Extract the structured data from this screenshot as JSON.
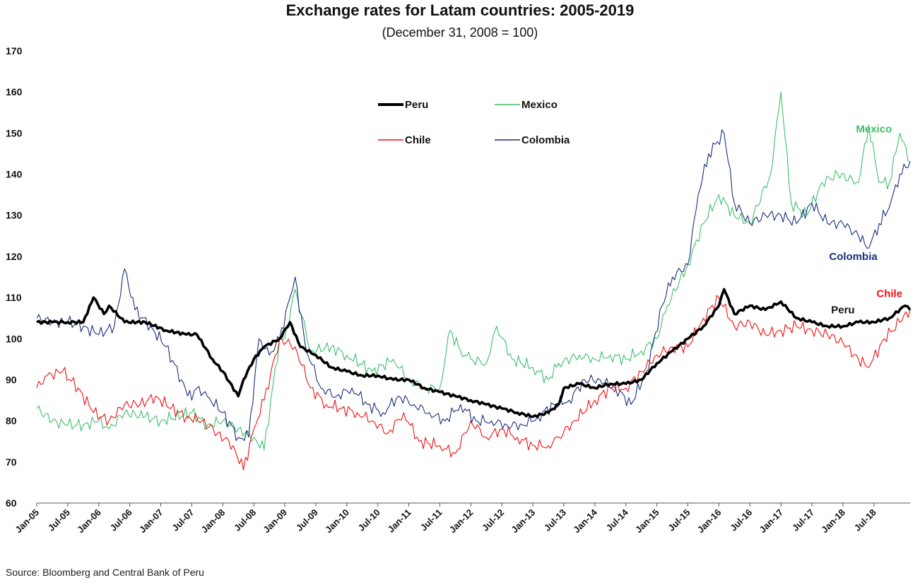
{
  "chart_data": {
    "type": "line",
    "title": "Exchange rates for Latam countries: 2005-2019",
    "subtitle": "(December 31, 2008 = 100)",
    "source": "Source: Bloomberg and Central Bank of Peru",
    "xlabel": "",
    "ylabel": "",
    "ylim": [
      60,
      170
    ],
    "yticks": [
      "60",
      "70",
      "80",
      "90",
      "100",
      "110",
      "120",
      "130",
      "140",
      "150",
      "160",
      "170"
    ],
    "xlim": [
      "Jan-05",
      "Feb-19"
    ],
    "xticks": [
      "Jan-05",
      "Jul-05",
      "Jan-06",
      "Jul-06",
      "Jan-07",
      "Jul-07",
      "Jan-08",
      "Jul-08",
      "Jan-09",
      "Jul-09",
      "Jan-10",
      "Jul-10",
      "Jan-11",
      "Jul-11",
      "Jan-12",
      "Jul-12",
      "Jan-13",
      "Jul-13",
      "Jan-14",
      "Jul-14",
      "Jan-15",
      "Jul-15",
      "Jan-16",
      "Jul-16",
      "Jan-17",
      "Jul-17",
      "Jan-18",
      "Jul-18"
    ],
    "grid": false,
    "legend_position": "top-center",
    "series": [
      {
        "name": "Peru",
        "color": "#000000",
        "x": [
          "Jan-05",
          "Apr-05",
          "Jul-05",
          "Oct-05",
          "Dec-05",
          "Feb-06",
          "Mar-06",
          "Jun-06",
          "Oct-06",
          "Feb-07",
          "Jun-07",
          "Aug-07",
          "Nov-07",
          "Jan-08",
          "Apr-08",
          "May-08",
          "Jul-08",
          "Sep-08",
          "Dec-08",
          "Feb-09",
          "Apr-09",
          "Jul-09",
          "Oct-09",
          "Jan-10",
          "Apr-10",
          "Jul-10",
          "Oct-10",
          "Jan-11",
          "Apr-11",
          "Jul-11",
          "Oct-11",
          "Jan-12",
          "Apr-12",
          "Jul-12",
          "Oct-12",
          "Jan-13",
          "Apr-13",
          "Jun-13",
          "Jul-13",
          "Oct-13",
          "Jan-14",
          "Apr-14",
          "Jul-14",
          "Oct-14",
          "Jan-15",
          "Apr-15",
          "Jul-15",
          "Oct-15",
          "Jan-16",
          "Feb-16",
          "Apr-16",
          "Jul-16",
          "Oct-16",
          "Jan-17",
          "Apr-17",
          "Jul-17",
          "Oct-17",
          "Jan-18",
          "Apr-18",
          "Jul-18",
          "Oct-18",
          "Jan-19",
          "Feb-19"
        ],
        "values": [
          104,
          104,
          104,
          104,
          110,
          106,
          108,
          104,
          104,
          102,
          101,
          101,
          95,
          92,
          86,
          90,
          95,
          98,
          100,
          104,
          98,
          96,
          93,
          92,
          91,
          91,
          90,
          90,
          88,
          87,
          86,
          85,
          84,
          83,
          82,
          81,
          82,
          84,
          88,
          89,
          88,
          89,
          89,
          90,
          94,
          97,
          100,
          103,
          108,
          112,
          106,
          108,
          107,
          109,
          105,
          104,
          103,
          103,
          104,
          104,
          105,
          108,
          107
        ]
      },
      {
        "name": "Mexico",
        "color": "#3dbf6a",
        "x": [
          "Jan-05",
          "Apr-05",
          "Jul-05",
          "Oct-05",
          "Jan-06",
          "Mar-06",
          "Jun-06",
          "Oct-06",
          "Jan-07",
          "Jul-07",
          "Oct-07",
          "Jan-08",
          "Apr-08",
          "Jul-08",
          "Sep-08",
          "Dec-08",
          "Jan-09",
          "Mar-09",
          "Jun-09",
          "Oct-09",
          "Jan-10",
          "Jun-10",
          "Oct-10",
          "Jan-11",
          "Apr-11",
          "Jul-11",
          "Sep-11",
          "Nov-11",
          "Jan-12",
          "Apr-12",
          "Jun-12",
          "Sep-12",
          "Jan-13",
          "Apr-13",
          "Jun-13",
          "Oct-13",
          "Jan-14",
          "Apr-14",
          "Jul-14",
          "Oct-14",
          "Jan-15",
          "Mar-15",
          "Jul-15",
          "Oct-15",
          "Jan-16",
          "Apr-16",
          "Jul-16",
          "Nov-16",
          "Jan-17",
          "Mar-17",
          "Jun-17",
          "Sep-17",
          "Dec-17",
          "Apr-18",
          "Jun-18",
          "Aug-18",
          "Oct-18",
          "Dec-18",
          "Feb-19"
        ],
        "values": [
          83,
          80,
          79,
          79,
          80,
          78,
          82,
          81,
          80,
          82,
          79,
          80,
          78,
          76,
          73,
          100,
          100,
          112,
          97,
          98,
          96,
          92,
          95,
          90,
          88,
          88,
          102,
          97,
          95,
          94,
          103,
          95,
          93,
          90,
          94,
          96,
          95,
          96,
          95,
          97,
          100,
          108,
          118,
          128,
          135,
          130,
          128,
          140,
          160,
          133,
          130,
          138,
          140,
          138,
          152,
          138,
          138,
          150,
          143
        ]
      },
      {
        "name": "Chile",
        "color": "#ee1111",
        "x": [
          "Jan-05",
          "Mar-05",
          "Jun-05",
          "Sep-05",
          "Dec-05",
          "Mar-06",
          "Jun-06",
          "Sep-06",
          "Dec-06",
          "Mar-07",
          "Jun-07",
          "Sep-07",
          "Dec-07",
          "Mar-08",
          "May-08",
          "Jul-08",
          "Sep-08",
          "Dec-08",
          "Mar-09",
          "Jun-09",
          "Sep-09",
          "Dec-09",
          "Mar-10",
          "Jun-10",
          "Sep-10",
          "Dec-10",
          "Mar-11",
          "Jul-11",
          "Oct-11",
          "Jan-12",
          "Apr-12",
          "Jul-12",
          "Oct-12",
          "Jan-13",
          "Apr-13",
          "Jun-13",
          "Sep-13",
          "Jan-14",
          "Apr-14",
          "Jul-14",
          "Oct-14",
          "Jan-15",
          "Apr-15",
          "Jul-15",
          "Oct-15",
          "Jan-16",
          "Apr-16",
          "Jul-16",
          "Oct-16",
          "Jan-17",
          "Apr-17",
          "Jul-17",
          "Oct-17",
          "Jan-18",
          "Apr-18",
          "Jun-18",
          "Sep-18",
          "Dec-18",
          "Feb-19"
        ],
        "values": [
          88,
          91,
          92,
          88,
          82,
          80,
          84,
          84,
          86,
          83,
          81,
          80,
          77,
          74,
          68,
          78,
          85,
          100,
          98,
          88,
          84,
          83,
          82,
          80,
          77,
          82,
          75,
          74,
          72,
          80,
          76,
          78,
          76,
          74,
          74,
          76,
          80,
          85,
          88,
          88,
          92,
          96,
          98,
          98,
          105,
          110,
          103,
          104,
          101,
          102,
          103,
          102,
          101,
          99,
          95,
          93,
          100,
          104,
          107
        ]
      },
      {
        "name": "Colombia",
        "color": "#1a2f7a",
        "x": [
          "Jan-05",
          "Apr-05",
          "Jul-05",
          "Oct-05",
          "Jan-06",
          "Apr-06",
          "Jun-06",
          "Aug-06",
          "Nov-06",
          "Feb-07",
          "May-07",
          "Jul-07",
          "Aug-07",
          "Oct-07",
          "Jan-08",
          "Apr-08",
          "Jun-08",
          "Aug-08",
          "Oct-08",
          "Dec-08",
          "Feb-09",
          "Mar-09",
          "May-09",
          "Aug-09",
          "Nov-09",
          "Feb-10",
          "May-10",
          "Aug-10",
          "Nov-10",
          "Feb-11",
          "May-11",
          "Aug-11",
          "Nov-11",
          "Feb-12",
          "May-12",
          "Aug-12",
          "Nov-12",
          "Feb-13",
          "May-13",
          "Aug-13",
          "Nov-13",
          "Feb-14",
          "May-14",
          "Aug-14",
          "Nov-14",
          "Feb-15",
          "Apr-15",
          "Jul-15",
          "Sep-15",
          "Nov-15",
          "Feb-16",
          "Apr-16",
          "Jul-16",
          "Oct-16",
          "Jan-17",
          "Apr-17",
          "Jul-17",
          "Oct-17",
          "Jan-18",
          "Apr-18",
          "Jun-18",
          "Aug-18",
          "Oct-18",
          "Dec-18",
          "Feb-19"
        ],
        "values": [
          105,
          104,
          104,
          103,
          101,
          103,
          117,
          107,
          103,
          98,
          90,
          85,
          88,
          86,
          82,
          76,
          76,
          100,
          96,
          100,
          110,
          115,
          98,
          88,
          86,
          88,
          84,
          82,
          86,
          84,
          82,
          80,
          84,
          80,
          80,
          79,
          79,
          81,
          84,
          85,
          90,
          90,
          88,
          84,
          92,
          108,
          115,
          118,
          135,
          145,
          150,
          133,
          128,
          130,
          130,
          128,
          133,
          128,
          128,
          125,
          122,
          128,
          132,
          140,
          143
        ]
      }
    ],
    "annotations": [
      {
        "text": "Mexico",
        "color": "#3dbf6a",
        "x": "Jul-18",
        "y": 151
      },
      {
        "text": "Colombia",
        "color": "#1a2f7a",
        "x": "Mar-18",
        "y": 120
      },
      {
        "text": "Chile",
        "color": "#ee1111",
        "x": "Oct-18",
        "y": 111
      },
      {
        "text": "Peru",
        "color": "#111111",
        "x": "Jan-18",
        "y": 107
      }
    ]
  }
}
